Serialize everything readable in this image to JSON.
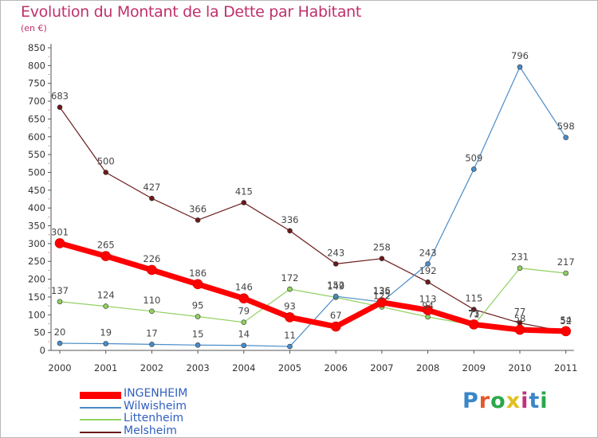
{
  "title": "Evolution du Montant de la Dette par Habitant",
  "subtitle": "(en €)",
  "logo": {
    "text": "Proxiti",
    "letter_colors": [
      "#3a86c8",
      "#e05a2a",
      "#2aa84a",
      "#e0c020",
      "#c03080",
      "#3a86c8",
      "#2aa84a"
    ]
  },
  "chart_data": {
    "type": "line",
    "title": "Evolution du Montant de la Dette par Habitant",
    "ylabel": "(en €)",
    "xlabel": "",
    "categories": [
      "2000",
      "2001",
      "2002",
      "2003",
      "2004",
      "2005",
      "2006",
      "2007",
      "2008",
      "2009",
      "2010",
      "2011"
    ],
    "ylim": [
      0,
      850
    ],
    "yticks": [
      0,
      50,
      100,
      150,
      200,
      250,
      300,
      350,
      400,
      450,
      500,
      550,
      600,
      650,
      700,
      750,
      800,
      850
    ],
    "grid": false,
    "legend": "bottom-left",
    "series": [
      {
        "name": "Melsheim",
        "color": "#6b1a1a",
        "width": 1.2,
        "marker": 3,
        "values": [
          683,
          500,
          427,
          366,
          415,
          336,
          243,
          258,
          192,
          115,
          77,
          52
        ],
        "labels": [
          "683",
          "500",
          "427",
          "366",
          "415",
          "336",
          "243",
          "258",
          "192",
          "115",
          "77",
          "52"
        ]
      },
      {
        "name": "Littenheim",
        "color": "#90d060",
        "width": 1.2,
        "marker": 3,
        "values": [
          137,
          124,
          110,
          95,
          79,
          172,
          149,
          122,
          94,
          71,
          231,
          217
        ],
        "labels": [
          "137",
          "124",
          "110",
          "95",
          "79",
          "172",
          "149",
          "122",
          "94",
          "71",
          "231",
          "217"
        ]
      },
      {
        "name": "Wilwisheim",
        "color": "#4a8cc8",
        "width": 1.2,
        "marker": 3,
        "values": [
          20,
          19,
          17,
          15,
          14,
          11,
          152,
          136,
          243,
          509,
          796,
          598
        ],
        "labels": [
          "20",
          "19",
          "17",
          "15",
          "14",
          "11",
          "152",
          "136",
          "243",
          "509",
          "796",
          "598"
        ]
      },
      {
        "name": "INGENHEIM",
        "color": "#ff0000",
        "width": 7,
        "marker": 6,
        "values": [
          301,
          265,
          226,
          186,
          146,
          93,
          67,
          135,
          113,
          73,
          58,
          54
        ],
        "labels": [
          "301",
          "265",
          "226",
          "186",
          "146",
          "93",
          "67",
          "135",
          "113",
          "73",
          "58",
          "54"
        ]
      }
    ],
    "legend_order": [
      "INGENHEIM",
      "Wilwisheim",
      "Littenheim",
      "Melsheim"
    ]
  }
}
